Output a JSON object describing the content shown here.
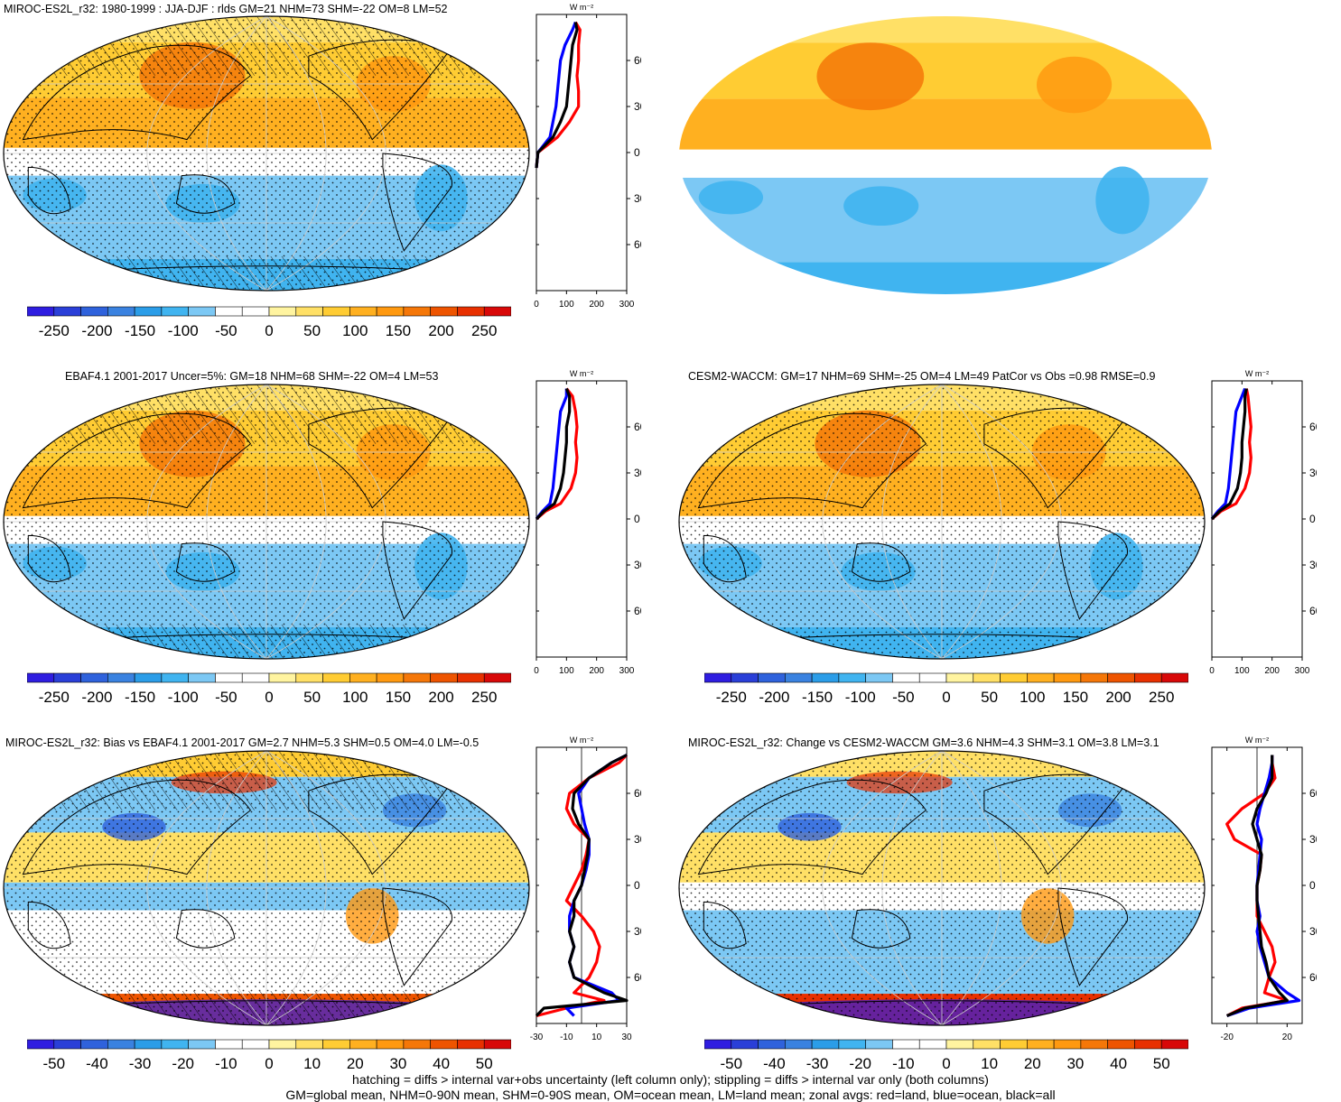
{
  "panels": [
    {
      "id": "p1",
      "title": "MIROC-ES2L_r32: 1980-1999 : JJA-DJF : rlds GM=21 NHM=73 SHM=-22 OM=8 LM=52",
      "scale": "abs",
      "hatch": true
    },
    {
      "id": "p2",
      "title": "",
      "scale": "abs",
      "hatch": false
    },
    {
      "id": "p3",
      "title": "EBAF4.1 2001-2017 Uncer=5%: GM=18 NHM=68 SHM=-22 OM=4 LM=53",
      "scale": "abs",
      "hatch": true
    },
    {
      "id": "p4",
      "title": "CESM2-WACCM: GM=17 NHM=69 SHM=-25 OM=4 LM=49 PatCor vs Obs =0.98 RMSE=0.9",
      "scale": "abs",
      "hatch": false
    },
    {
      "id": "p5",
      "title": "MIROC-ES2L_r32: Bias vs EBAF4.1 2001-2017 GM=2.7 NHM=5.3 SHM=0.5 OM=4.0 LM=-0.5",
      "scale": "diff",
      "hatch": true
    },
    {
      "id": "p6",
      "title": "MIROC-ES2L_r32: Change vs CESM2-WACCM GM=3.6 NHM=4.3 SHM=3.1 OM=3.8 LM=3.1",
      "scale": "diff",
      "hatch": false
    }
  ],
  "colorbars": {
    "abs": {
      "labels": [
        "-250",
        "-200",
        "-150",
        "-100",
        "-50",
        "0",
        "50",
        "100",
        "150",
        "200",
        "250"
      ]
    },
    "diff": {
      "labels": [
        "-50",
        "-40",
        "-30",
        "-20",
        "-10",
        "0",
        "10",
        "20",
        "30",
        "40",
        "50"
      ]
    },
    "colors": [
      "#2f1de0",
      "#2a3fd8",
      "#2f62dc",
      "#3a82e0",
      "#2b9de8",
      "#40b4f0",
      "#7cc8f4",
      "#ffffff",
      "#ffffff",
      "#fff4a0",
      "#ffe066",
      "#ffcc33",
      "#ffb020",
      "#ff9910",
      "#f57708",
      "#ee5400",
      "#e83000",
      "#d80808"
    ]
  },
  "zonal": {
    "unit": "W m⁻²",
    "lat_labels": [
      "60N",
      "30N",
      "0",
      "30S",
      "60S"
    ],
    "abs_xticks": [
      "0",
      "100",
      "200",
      "300"
    ],
    "diff_xticks_left": [
      "-30",
      "-10",
      "10",
      "30"
    ],
    "diff_xticks_right": [
      "-20",
      "20"
    ],
    "legend": {
      "land": "#ff0000",
      "ocean": "#0000ff",
      "all": "#000000"
    }
  },
  "chart_data": [
    {
      "type": "line",
      "title": "MIROC-ES2L_r32: 1980-1999 : JJA-DJF : rlds GM=21 NHM=73 SHM=-22 OM=8 LM=52",
      "xlabel": "W m⁻²",
      "xlim": [
        0,
        300
      ],
      "ylim": [
        -90,
        90
      ],
      "y": [
        -10,
        0,
        10,
        20,
        30,
        40,
        50,
        60,
        70,
        80,
        85
      ],
      "series": [
        {
          "name": "land",
          "x": [
            0,
            5,
            70,
            110,
            140,
            140,
            135,
            140,
            140,
            145,
            130
          ]
        },
        {
          "name": "ocean",
          "x": [
            0,
            5,
            45,
            55,
            65,
            70,
            75,
            80,
            95,
            120,
            130
          ]
        },
        {
          "name": "all",
          "x": [
            0,
            5,
            55,
            80,
            100,
            105,
            110,
            115,
            120,
            135,
            130
          ]
        }
      ]
    },
    {
      "type": "line",
      "title": "EBAF4.1 2001-2017 Uncer=5%: GM=18 NHM=68 SHM=-22 OM=4 LM=53",
      "xlabel": "W m⁻²",
      "xlim": [
        0,
        300
      ],
      "ylim": [
        -90,
        90
      ],
      "y": [
        0,
        5,
        10,
        20,
        30,
        40,
        50,
        60,
        70,
        80,
        85
      ],
      "series": [
        {
          "name": "land",
          "x": [
            0,
            30,
            80,
            115,
            130,
            135,
            130,
            135,
            130,
            120,
            100
          ]
        },
        {
          "name": "ocean",
          "x": [
            0,
            20,
            45,
            55,
            60,
            65,
            70,
            75,
            80,
            100,
            100
          ]
        },
        {
          "name": "all",
          "x": [
            0,
            25,
            60,
            80,
            90,
            95,
            100,
            100,
            110,
            110,
            100
          ]
        }
      ]
    },
    {
      "type": "line",
      "title": "CESM2-WACCM: GM=17 NHM=69 SHM=-25 OM=4 LM=49 PatCor vs Obs =0.98 RMSE=0.9",
      "xlabel": "W m⁻²",
      "xlim": [
        0,
        300
      ],
      "ylim": [
        -90,
        90
      ],
      "y": [
        0,
        5,
        10,
        20,
        30,
        40,
        50,
        60,
        70,
        80,
        85
      ],
      "series": [
        {
          "name": "land",
          "x": [
            0,
            30,
            80,
            110,
            125,
            130,
            125,
            130,
            125,
            120,
            115
          ]
        },
        {
          "name": "ocean",
          "x": [
            0,
            20,
            45,
            55,
            60,
            65,
            70,
            75,
            80,
            100,
            110
          ]
        },
        {
          "name": "all",
          "x": [
            0,
            25,
            60,
            85,
            95,
            100,
            100,
            105,
            110,
            110,
            115
          ]
        }
      ]
    },
    {
      "type": "line",
      "title": "MIROC-ES2L_r32: Bias vs EBAF4.1 2001-2017 GM=2.7 NHM=5.3 SHM=0.5 OM=4.0 LM=-0.5",
      "xlabel": "W m⁻²",
      "xlim": [
        -30,
        30
      ],
      "ylim": [
        -90,
        90
      ],
      "y": [
        -85,
        -80,
        -75,
        -70,
        -60,
        -50,
        -40,
        -30,
        -20,
        -10,
        0,
        10,
        20,
        30,
        40,
        50,
        60,
        70,
        80,
        85
      ],
      "series": [
        {
          "name": "land",
          "x": [
            -30,
            -10,
            15,
            -5,
            5,
            10,
            12,
            8,
            0,
            -10,
            -5,
            0,
            3,
            5,
            -5,
            -10,
            -8,
            5,
            25,
            30
          ]
        },
        {
          "name": "ocean",
          "x": [
            -5,
            -10,
            25,
            20,
            -5,
            -8,
            -5,
            -8,
            -8,
            -5,
            0,
            3,
            5,
            5,
            2,
            0,
            -2,
            5,
            20,
            30
          ]
        },
        {
          "name": "all",
          "x": [
            -30,
            -25,
            30,
            15,
            -5,
            -8,
            -5,
            -8,
            -5,
            -5,
            0,
            2,
            4,
            5,
            -2,
            -6,
            -5,
            5,
            20,
            30
          ]
        }
      ]
    },
    {
      "type": "line",
      "title": "MIROC-ES2L_r32: Change vs CESM2-WACCM GM=3.6 NHM=4.3 SHM=3.1 OM=3.8 LM=3.1",
      "xlabel": "W m⁻²",
      "xlim": [
        -30,
        30
      ],
      "ylim": [
        -90,
        90
      ],
      "y": [
        -85,
        -80,
        -75,
        -70,
        -60,
        -50,
        -40,
        -30,
        -20,
        -10,
        0,
        10,
        20,
        30,
        40,
        50,
        60,
        70,
        80,
        85
      ],
      "series": [
        {
          "name": "land",
          "x": [
            -20,
            -10,
            20,
            5,
            8,
            12,
            10,
            5,
            0,
            0,
            0,
            2,
            3,
            -15,
            -20,
            -10,
            5,
            12,
            10,
            10
          ]
        },
        {
          "name": "ocean",
          "x": [
            -20,
            -5,
            28,
            20,
            8,
            5,
            2,
            0,
            2,
            0,
            0,
            1,
            2,
            3,
            0,
            2,
            5,
            8,
            10,
            10
          ]
        },
        {
          "name": "all",
          "x": [
            -20,
            -8,
            20,
            15,
            8,
            6,
            3,
            2,
            1,
            0,
            0,
            2,
            3,
            0,
            -3,
            0,
            6,
            10,
            10,
            10
          ]
        }
      ]
    }
  ],
  "footer": [
    "hatching = diffs > internal var+obs uncertainty (left column only); stippling = diffs > internal var only (both columns)",
    "GM=global mean, NHM=0-90N mean, SHM=0-90S mean, OM=ocean mean, LM=land mean; zonal avgs: red=land, blue=ocean, black=all"
  ]
}
